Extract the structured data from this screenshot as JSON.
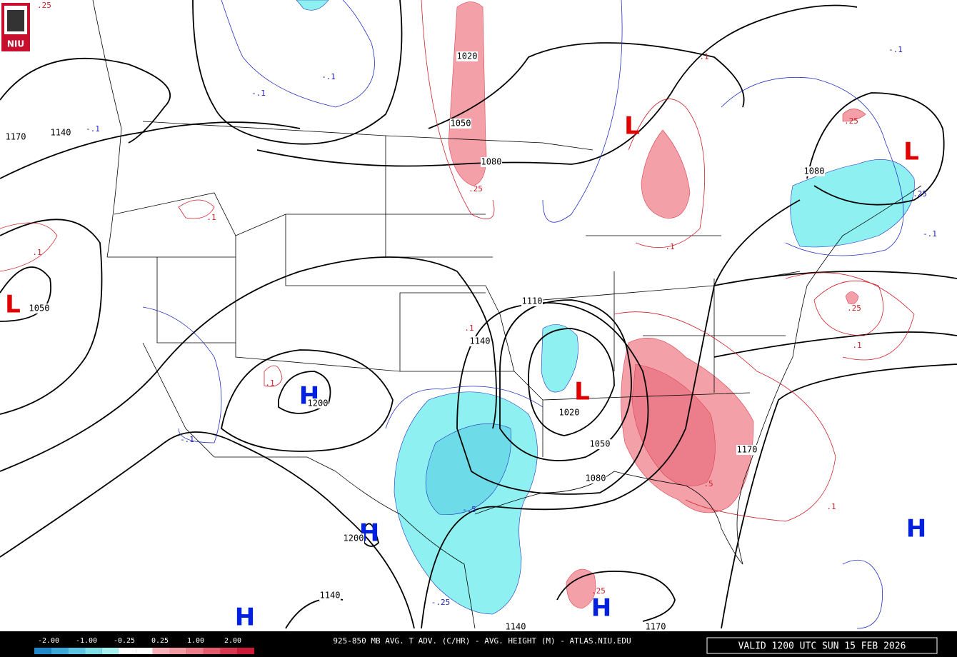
{
  "logo": "NIU",
  "footer": {
    "title": "925-850 MB AVG. T ADV. (C/HR) - AVG. HEIGHT (M) - ATLAS.NIU.EDU",
    "valid": "VALID 1200 UTC SUN 15 FEB 2026"
  },
  "legend": {
    "labels": [
      "-2.00",
      "-1.00",
      "-0.25",
      "0.25",
      "1.00",
      "2.00"
    ],
    "colors": [
      "#1e88c8",
      "#3aa8d8",
      "#5cc4e0",
      "#7fdfe8",
      "#a6f0f0",
      "#ffffff",
      "#ffffff",
      "#f7b0b8",
      "#f29aa4",
      "#ec7d8a",
      "#e35a6c",
      "#d93650",
      "#cc1a36"
    ]
  },
  "lows": [
    "L",
    "L",
    "L",
    "L"
  ],
  "highs": [
    "H",
    "H",
    "H",
    "H",
    "H"
  ],
  "height_labels": [
    "1020",
    "1050",
    "1080",
    "1170",
    "1140",
    "1050",
    "1200",
    "1140",
    "1110",
    "1020",
    "1050",
    "1080",
    "1170",
    "1080",
    "1200",
    "1140",
    "1140",
    "1170"
  ],
  "warm_labels": [
    ".25",
    ".1",
    ".1",
    ".1",
    ".1",
    ".1",
    ".25",
    ".1",
    ".25",
    ".1",
    ".5",
    ".25",
    ".1",
    ".25"
  ],
  "cold_labels": [
    "-.1",
    "-.1",
    "-.1",
    "-.1",
    "-.5",
    "-.25",
    "-.1",
    "-.1",
    ".25"
  ]
}
